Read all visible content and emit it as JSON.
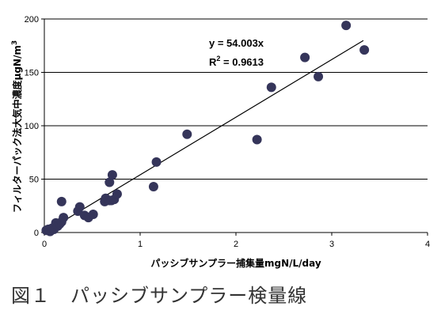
{
  "chart_data": {
    "type": "scatter",
    "xlabel": "パッシブサンプラー捕集量mgN/L/day",
    "ylabel": "フィルターパック法大気中濃度μgN/m3",
    "ylabel_main": "フィルターパック法大気中濃度μgN/m",
    "ylabel_sup": "3",
    "xlim": [
      0,
      4
    ],
    "ylim": [
      0,
      200
    ],
    "xticks": [
      "0",
      "1",
      "2",
      "3",
      "4"
    ],
    "yticks": [
      "0",
      "50",
      "100",
      "150",
      "200"
    ],
    "grid": "horizontal",
    "legend": "none",
    "marker_color": "#35355a",
    "line_color": "#000000",
    "trendline": {
      "x_range": [
        0,
        3.33
      ],
      "slope": 54.003
    },
    "annotation_eq": "y = 54.003x",
    "annotation_r2_label": "R",
    "annotation_r2_sup": "2",
    "annotation_r2_value": " = 0.9613",
    "points": [
      {
        "x": 0.02,
        "y": 2
      },
      {
        "x": 0.04,
        "y": 3
      },
      {
        "x": 0.06,
        "y": 1
      },
      {
        "x": 0.08,
        "y": 4
      },
      {
        "x": 0.1,
        "y": 3
      },
      {
        "x": 0.12,
        "y": 9
      },
      {
        "x": 0.14,
        "y": 6
      },
      {
        "x": 0.16,
        "y": 8
      },
      {
        "x": 0.18,
        "y": 10
      },
      {
        "x": 0.2,
        "y": 14
      },
      {
        "x": 0.18,
        "y": 29
      },
      {
        "x": 0.35,
        "y": 20
      },
      {
        "x": 0.37,
        "y": 24
      },
      {
        "x": 0.42,
        "y": 16
      },
      {
        "x": 0.46,
        "y": 14
      },
      {
        "x": 0.51,
        "y": 17
      },
      {
        "x": 0.63,
        "y": 29
      },
      {
        "x": 0.64,
        "y": 32
      },
      {
        "x": 0.68,
        "y": 30
      },
      {
        "x": 0.7,
        "y": 30
      },
      {
        "x": 0.68,
        "y": 47
      },
      {
        "x": 0.71,
        "y": 54
      },
      {
        "x": 0.73,
        "y": 31
      },
      {
        "x": 0.76,
        "y": 36
      },
      {
        "x": 1.14,
        "y": 43
      },
      {
        "x": 1.17,
        "y": 66
      },
      {
        "x": 1.49,
        "y": 92
      },
      {
        "x": 2.22,
        "y": 87
      },
      {
        "x": 2.37,
        "y": 136
      },
      {
        "x": 2.72,
        "y": 164
      },
      {
        "x": 2.86,
        "y": 146
      },
      {
        "x": 3.15,
        "y": 194
      },
      {
        "x": 3.34,
        "y": 171
      }
    ]
  },
  "caption": "図１　パッシブサンプラー検量線"
}
